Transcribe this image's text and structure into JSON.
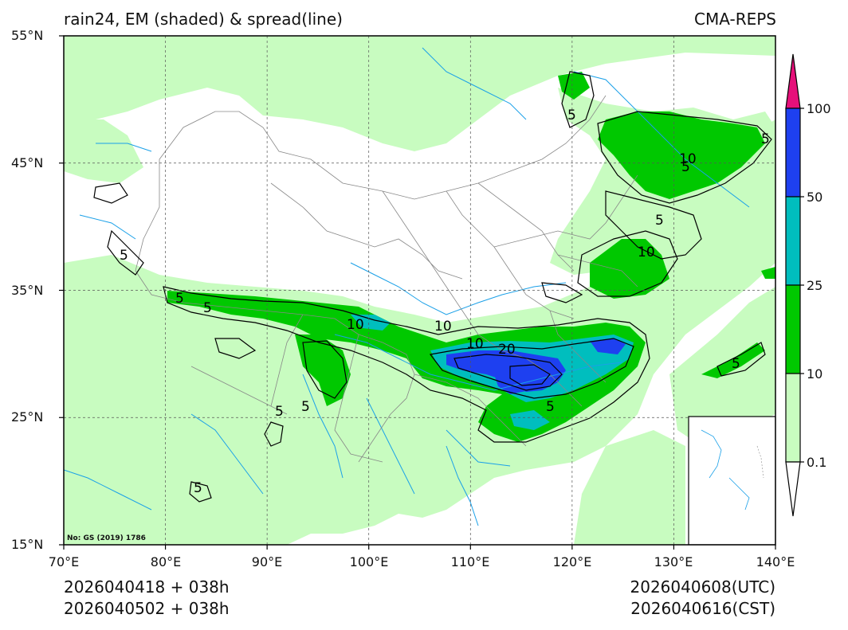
{
  "header": {
    "title_left": "rain24, EM (shaded) & spread(line)",
    "title_right": "CMA-REPS"
  },
  "axes": {
    "lat_labels": [
      "55°N",
      "45°N",
      "35°N",
      "25°N",
      "15°N"
    ],
    "lat_values": [
      55,
      45,
      35,
      25,
      15
    ],
    "lon_labels": [
      "70°E",
      "80°E",
      "90°E",
      "100°E",
      "110°E",
      "120°E",
      "130°E",
      "140°E"
    ],
    "lon_values": [
      70,
      80,
      90,
      100,
      110,
      120,
      130,
      140
    ],
    "lat_range": [
      15,
      55
    ],
    "lon_range": [
      70,
      140
    ]
  },
  "colorbar": {
    "levels": [
      "0.1",
      "10",
      "25",
      "50",
      "100"
    ],
    "colors": {
      "light_green": "#c8fcc0",
      "green": "#00c800",
      "cyan": "#00bebe",
      "blue": "#1e40f0",
      "magenta": "#e6107a"
    }
  },
  "contour_labels": [
    "5",
    "5",
    "5",
    "5",
    "5",
    "10",
    "10",
    "10",
    "20",
    "5",
    "10",
    "5",
    "5",
    "10",
    "5",
    "5",
    "5",
    "5"
  ],
  "map_note": "No: GS (2019) 1786",
  "footer": {
    "init_utc": "2026040418  +  038h",
    "init_cst": "2026040502  +  038h",
    "valid_utc": "2026040608(UTC)",
    "valid_cst": "2026040616(CST)"
  },
  "colors": {
    "river": "#1aa0e8",
    "border": "#888888",
    "grid": "#555555",
    "contour": "#000000"
  }
}
